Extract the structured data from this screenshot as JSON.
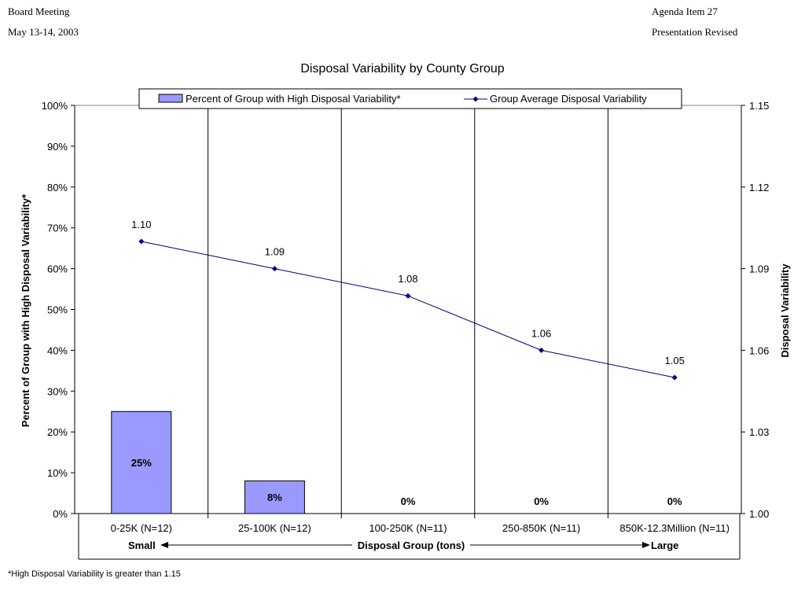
{
  "header": {
    "left_line1": "Board Meeting",
    "left_line2": "May 13-14, 2003",
    "right_line1": "Agenda Item 27",
    "right_line2": "Presentation Revised"
  },
  "footnote": "*High Disposal Variability is greater than 1.15",
  "chart_data": {
    "type": "bar",
    "title": "Disposal Variability  by County Group",
    "categories": [
      "0-25K (N=12)",
      "25-100K (N=12)",
      "100-250K (N=11)",
      "250-850K (N=11)",
      "850K-12.3Million (N=11)"
    ],
    "series": [
      {
        "name": "Percent of Group with High Disposal Variability*",
        "type": "bar",
        "axis": "left",
        "values": [
          25,
          8,
          0,
          0,
          0
        ],
        "labels": [
          "25%",
          "8%",
          "0%",
          "0%",
          "0%"
        ],
        "color": "#9999ff"
      },
      {
        "name": "Group Average Disposal Variability",
        "type": "line",
        "axis": "right",
        "values": [
          1.1,
          1.09,
          1.08,
          1.06,
          1.05
        ],
        "labels": [
          "1.10",
          "1.09",
          "1.08",
          "1.06",
          "1.05"
        ],
        "color": "#000080"
      }
    ],
    "y_left": {
      "label": "Percent of Group with High Disposal Variability*",
      "ylim": [
        0,
        100
      ],
      "ticks": [
        "0%",
        "10%",
        "20%",
        "30%",
        "40%",
        "50%",
        "60%",
        "70%",
        "80%",
        "90%",
        "100%"
      ]
    },
    "y_right": {
      "label": "Disposal Variability",
      "ylim": [
        1.0,
        1.15
      ],
      "ticks": [
        "1.00",
        "1.03",
        "1.06",
        "1.09",
        "1.12",
        "1.15"
      ]
    },
    "x_axis": {
      "label": "Disposal Group (tons)",
      "left_end": "Small",
      "right_end": "Large"
    },
    "legend_position": "top"
  }
}
